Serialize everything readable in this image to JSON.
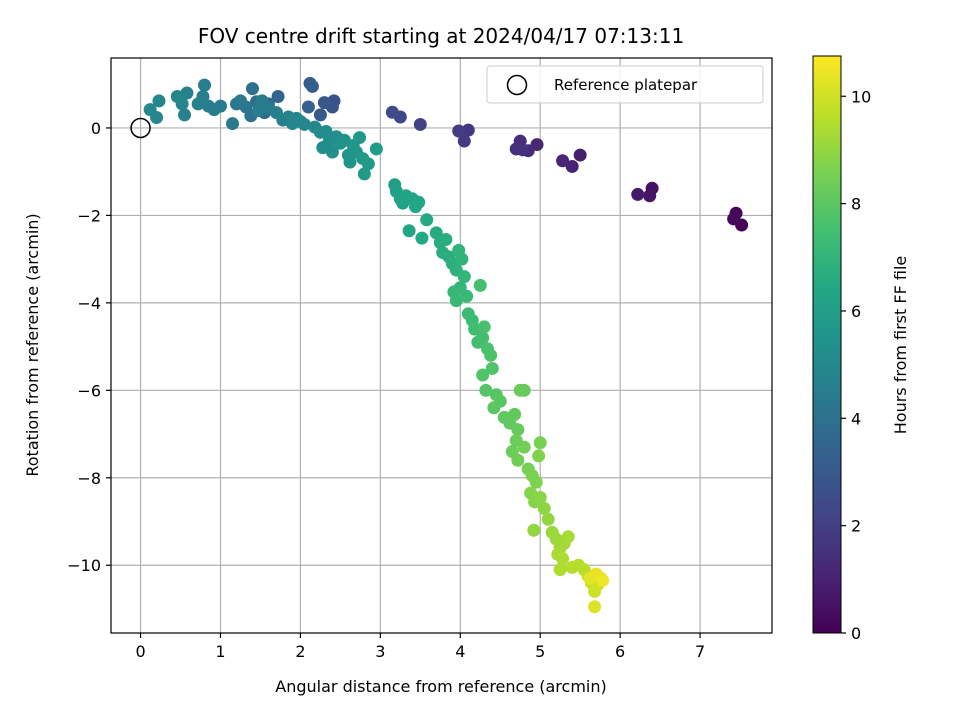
{
  "chart_data": {
    "type": "scatter",
    "title": "FOV centre drift starting at 2024/04/17 07:13:11",
    "xlabel": "Angular distance from reference (arcmin)",
    "ylabel": "Rotation from reference (arcmin)",
    "xlim": [
      -0.37,
      7.9
    ],
    "ylim": [
      -11.55,
      1.6
    ],
    "xticks": [
      "0",
      "1",
      "2",
      "3",
      "4",
      "5",
      "6",
      "7"
    ],
    "yticks": [
      "0",
      "−2",
      "−4",
      "−6",
      "−8",
      "−10"
    ],
    "grid": true,
    "legend": {
      "label": "Reference platepar",
      "position": "top-right"
    },
    "reference_point": {
      "x": 0,
      "y": 0
    },
    "colorbar": {
      "label": "Hours from first FF file",
      "range": [
        0,
        10.75
      ],
      "ticks": [
        "0",
        "2",
        "4",
        "6",
        "8",
        "10"
      ],
      "colormap": "viridis"
    },
    "points": [
      [
        7.52,
        -2.22,
        0.05
      ],
      [
        7.45,
        -1.95,
        0.15
      ],
      [
        7.42,
        -2.08,
        0.25
      ],
      [
        6.4,
        -1.38,
        0.45
      ],
      [
        6.37,
        -1.55,
        0.6
      ],
      [
        6.22,
        -1.52,
        0.75
      ],
      [
        5.5,
        -0.62,
        0.9
      ],
      [
        5.4,
        -0.88,
        1.0
      ],
      [
        5.28,
        -0.75,
        1.1
      ],
      [
        4.96,
        -0.38,
        1.2
      ],
      [
        4.85,
        -0.52,
        1.3
      ],
      [
        4.75,
        -0.3,
        1.4
      ],
      [
        4.7,
        -0.48,
        1.45
      ],
      [
        4.78,
        -0.5,
        1.5
      ],
      [
        4.1,
        -0.05,
        1.7
      ],
      [
        4.05,
        -0.3,
        1.8
      ],
      [
        3.98,
        -0.07,
        1.9
      ],
      [
        3.5,
        0.08,
        2.1
      ],
      [
        3.25,
        0.25,
        2.3
      ],
      [
        3.15,
        0.36,
        2.5
      ],
      [
        2.42,
        0.62,
        2.7
      ],
      [
        2.4,
        0.48,
        2.8
      ],
      [
        2.3,
        0.58,
        2.9
      ],
      [
        2.25,
        0.3,
        3.0
      ],
      [
        2.15,
        0.95,
        3.1
      ],
      [
        2.12,
        1.02,
        3.2
      ],
      [
        2.1,
        0.48,
        3.3
      ],
      [
        1.72,
        0.72,
        3.5
      ],
      [
        1.6,
        0.55,
        3.6
      ],
      [
        1.55,
        0.35,
        3.7
      ],
      [
        1.5,
        0.48,
        3.8
      ],
      [
        1.45,
        0.6,
        3.9
      ],
      [
        1.4,
        0.9,
        4.0
      ],
      [
        1.38,
        0.28,
        4.1
      ],
      [
        1.32,
        0.48,
        4.2
      ],
      [
        1.25,
        0.62,
        4.25
      ],
      [
        1.2,
        0.55,
        4.3
      ],
      [
        1.15,
        0.1,
        4.35
      ],
      [
        1.0,
        0.5,
        4.4
      ],
      [
        0.92,
        0.42,
        4.45
      ],
      [
        0.85,
        0.5,
        4.5
      ],
      [
        0.8,
        0.98,
        4.55
      ],
      [
        0.78,
        0.72,
        4.6
      ],
      [
        0.72,
        0.55,
        4.65
      ],
      [
        0.58,
        0.8,
        4.7
      ],
      [
        0.55,
        0.3,
        4.75
      ],
      [
        0.52,
        0.55,
        4.8
      ],
      [
        0.46,
        0.72,
        4.85
      ],
      [
        0.23,
        0.62,
        4.9
      ],
      [
        0.2,
        0.24,
        4.95
      ],
      [
        0.12,
        0.42,
        5.0
      ],
      [
        1.6,
        0.48,
        4.4
      ],
      [
        1.48,
        0.4,
        4.5
      ],
      [
        1.52,
        0.62,
        4.45
      ],
      [
        1.7,
        0.35,
        4.6
      ],
      [
        1.78,
        0.18,
        4.7
      ],
      [
        1.85,
        0.25,
        4.75
      ],
      [
        1.9,
        0.1,
        4.8
      ],
      [
        1.95,
        0.22,
        4.85
      ],
      [
        2.0,
        0.15,
        4.9
      ],
      [
        2.05,
        0.08,
        4.95
      ],
      [
        2.18,
        0.02,
        5.0
      ],
      [
        2.25,
        -0.1,
        5.1
      ],
      [
        2.28,
        -0.45,
        5.15
      ],
      [
        2.32,
        -0.08,
        5.2
      ],
      [
        2.36,
        -0.3,
        5.25
      ],
      [
        2.4,
        -0.55,
        5.3
      ],
      [
        2.45,
        -0.2,
        5.35
      ],
      [
        2.5,
        -0.35,
        5.4
      ],
      [
        2.55,
        -0.28,
        5.45
      ],
      [
        2.6,
        -0.62,
        5.5
      ],
      [
        2.62,
        -0.78,
        5.55
      ],
      [
        2.66,
        -0.4,
        5.6
      ],
      [
        2.7,
        -0.55,
        5.65
      ],
      [
        2.74,
        -0.22,
        5.7
      ],
      [
        2.78,
        -0.7,
        5.75
      ],
      [
        2.8,
        -1.05,
        5.8
      ],
      [
        2.85,
        -0.82,
        5.85
      ],
      [
        2.95,
        -0.48,
        5.9
      ],
      [
        3.18,
        -1.3,
        6.0
      ],
      [
        3.2,
        -1.45,
        6.05
      ],
      [
        3.25,
        -1.62,
        6.1
      ],
      [
        3.28,
        -1.72,
        6.15
      ],
      [
        3.32,
        -1.55,
        6.2
      ],
      [
        3.36,
        -2.35,
        6.25
      ],
      [
        3.4,
        -1.62,
        6.3
      ],
      [
        3.44,
        -1.8,
        6.35
      ],
      [
        3.48,
        -1.7,
        6.4
      ],
      [
        3.52,
        -2.52,
        6.45
      ],
      [
        3.58,
        -2.1,
        6.5
      ],
      [
        3.7,
        -2.4,
        6.55
      ],
      [
        3.75,
        -2.62,
        6.6
      ],
      [
        3.78,
        -2.85,
        6.65
      ],
      [
        3.82,
        -2.55,
        6.7
      ],
      [
        3.86,
        -2.95,
        6.75
      ],
      [
        3.9,
        -3.1,
        6.8
      ],
      [
        3.95,
        -3.25,
        6.85
      ],
      [
        3.98,
        -2.8,
        6.9
      ],
      [
        4.02,
        -3.0,
        6.95
      ],
      [
        4.05,
        -3.4,
        7.0
      ],
      [
        4.0,
        -3.65,
        7.05
      ],
      [
        3.92,
        -3.75,
        7.1
      ],
      [
        3.95,
        -3.95,
        7.15
      ],
      [
        4.08,
        -3.85,
        7.2
      ],
      [
        4.1,
        -4.25,
        7.3
      ],
      [
        4.15,
        -4.4,
        7.35
      ],
      [
        4.18,
        -4.6,
        7.4
      ],
      [
        4.22,
        -4.9,
        7.45
      ],
      [
        4.28,
        -4.8,
        7.5
      ],
      [
        4.25,
        -3.6,
        7.55
      ],
      [
        4.3,
        -4.55,
        7.6
      ],
      [
        4.34,
        -5.05,
        7.65
      ],
      [
        4.38,
        -5.2,
        7.7
      ],
      [
        4.4,
        -5.5,
        7.75
      ],
      [
        4.28,
        -5.65,
        7.8
      ],
      [
        4.32,
        -6.0,
        7.85
      ],
      [
        4.45,
        -6.1,
        7.9
      ],
      [
        4.5,
        -6.25,
        7.95
      ],
      [
        4.42,
        -6.4,
        8.0
      ],
      [
        4.55,
        -6.62,
        8.05
      ],
      [
        4.62,
        -6.75,
        8.1
      ],
      [
        4.68,
        -6.55,
        8.15
      ],
      [
        4.72,
        -6.9,
        8.2
      ],
      [
        4.75,
        -6.0,
        8.25
      ],
      [
        4.7,
        -7.15,
        8.3
      ],
      [
        4.65,
        -7.4,
        8.35
      ],
      [
        4.72,
        -7.6,
        8.4
      ],
      [
        4.8,
        -7.3,
        8.45
      ],
      [
        4.85,
        -7.8,
        8.5
      ],
      [
        4.9,
        -7.95,
        8.6
      ],
      [
        4.95,
        -8.1,
        8.65
      ],
      [
        4.98,
        -7.5,
        8.7
      ],
      [
        4.88,
        -8.35,
        8.75
      ],
      [
        4.93,
        -8.55,
        8.8
      ],
      [
        5.0,
        -8.45,
        8.85
      ],
      [
        5.05,
        -8.7,
        8.9
      ],
      [
        4.92,
        -9.2,
        8.95
      ],
      [
        5.1,
        -8.95,
        9.0
      ],
      [
        5.15,
        -9.25,
        9.1
      ],
      [
        5.2,
        -9.4,
        9.15
      ],
      [
        5.25,
        -9.6,
        9.2
      ],
      [
        5.3,
        -9.5,
        9.25
      ],
      [
        5.35,
        -9.35,
        9.3
      ],
      [
        5.22,
        -9.75,
        9.35
      ],
      [
        5.28,
        -9.85,
        9.4
      ],
      [
        5.4,
        -10.05,
        9.5
      ],
      [
        5.48,
        -10.0,
        9.55
      ],
      [
        5.55,
        -10.1,
        9.6
      ],
      [
        5.6,
        -10.25,
        9.7
      ],
      [
        5.64,
        -10.4,
        9.8
      ],
      [
        5.68,
        -10.6,
        9.9
      ],
      [
        5.72,
        -10.45,
        10.0
      ],
      [
        5.76,
        -10.3,
        10.1
      ],
      [
        5.68,
        -10.95,
        10.2
      ],
      [
        5.25,
        -10.1,
        9.45
      ],
      [
        5.62,
        -10.3,
        10.3
      ],
      [
        5.7,
        -10.2,
        10.4
      ],
      [
        5.78,
        -10.35,
        10.5
      ],
      [
        4.8,
        -6.0,
        8.22
      ],
      [
        5.0,
        -7.2,
        8.55
      ]
    ]
  }
}
